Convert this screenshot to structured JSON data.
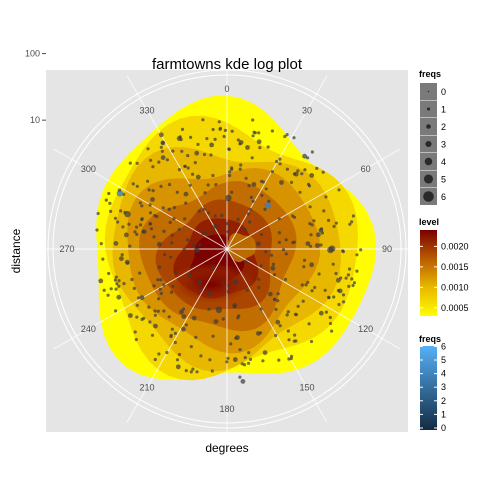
{
  "chart_data": {
    "type": "scatter",
    "coord": "polar",
    "title": "farmtowns kde log plot",
    "xlabel": "degrees",
    "ylabel": "distance",
    "y_scale": "log",
    "angle_ticks": [
      0,
      30,
      60,
      90,
      120,
      150,
      180,
      210,
      240,
      270,
      300,
      330
    ],
    "angle_tick_labels": [
      "0",
      "30",
      "60",
      "90",
      "120",
      "150",
      "180",
      "210",
      "240",
      "270",
      "300",
      "330"
    ],
    "radius_ticks": [
      10,
      100
    ],
    "radius_tick_labels": [
      "10",
      "100"
    ],
    "grid": true,
    "panel_background": "#e5e5e5",
    "density_colors": [
      "#fffd00",
      "#f4d800",
      "#e6b400",
      "#d59000",
      "#bf6a00",
      "#a84300",
      "#8f1c00",
      "#7a0000"
    ],
    "density_levels_sample": [
      0.0003,
      0.0006,
      0.0009,
      0.0012,
      0.0015,
      0.0018,
      0.0021,
      0.0024
    ],
    "legends": {
      "size_legend": {
        "title": "freqs",
        "labels": [
          "0",
          "1",
          "2",
          "3",
          "4",
          "5",
          "6"
        ],
        "values": [
          0,
          1,
          2,
          3,
          4,
          5,
          6
        ]
      },
      "level_legend": {
        "title": "level",
        "labels": [
          "0.0020",
          "0.0015",
          "0.0010",
          "0.0005"
        ],
        "values": [
          0.002,
          0.0015,
          0.001,
          0.0005
        ],
        "range": [
          0.0003,
          0.0024
        ],
        "colors": [
          "#fffd00",
          "#7a0000"
        ]
      },
      "color_legend": {
        "title": "freqs",
        "labels": [
          "6",
          "5",
          "4",
          "3",
          "2",
          "1",
          "0"
        ],
        "values": [
          6,
          5,
          4,
          3,
          2,
          1,
          0
        ],
        "colors": [
          "#132b43",
          "#56b1f7"
        ]
      }
    }
  }
}
